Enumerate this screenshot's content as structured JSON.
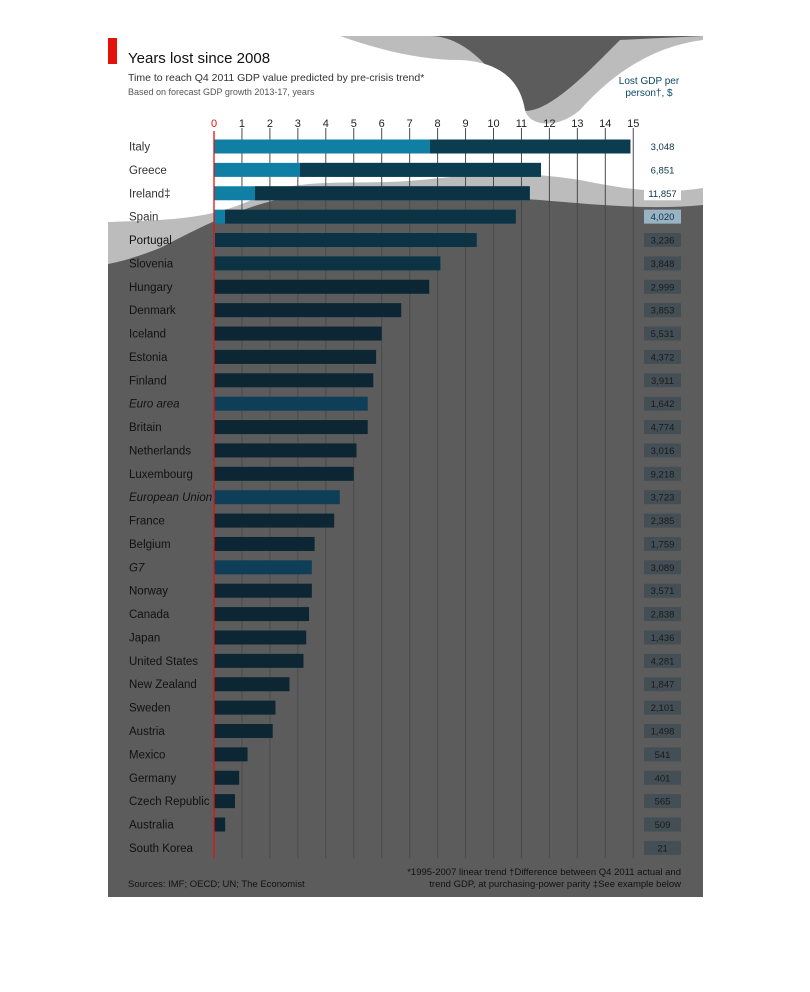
{
  "header": {
    "title": "Years lost since 2008",
    "subtitle": "Time to reach Q4 2011 GDP value predicted by pre-crisis trend*",
    "subsubtitle": "Based on forecast GDP growth 2013-17, years",
    "value_column_title_line1": "Lost GDP per",
    "value_column_title_line2": "person†, $"
  },
  "footer": {
    "sources": "Sources: IMF; OECD; UN; The Economist",
    "note_line1": "*1995-2007 linear trend   †Difference between Q4 2011 actual and",
    "note_line2": "trend GDP, at purchasing-power parity   ‡See example below"
  },
  "colors": {
    "background_dark": "#5c5c5c",
    "band_light": "#bcbcbc",
    "bar_dark": "#0c2633",
    "bar_aggregate": "#0f3f58",
    "bar_light": "#0f7fa3",
    "accent_red": "#e3120b",
    "label_box_light": "#ffffff",
    "label_box_dark": "#434f55"
  },
  "chart_data": {
    "type": "bar",
    "orientation": "horizontal",
    "xlim": [
      0,
      15
    ],
    "x_ticks": [
      "0",
      "1",
      "2",
      "3",
      "4",
      "5",
      "6",
      "7",
      "8",
      "9",
      "10",
      "11",
      "12",
      "13",
      "14",
      "15"
    ],
    "grid": true,
    "categories": [
      "Italy",
      "Greece",
      "Ireland‡",
      "Spain",
      "Portugal",
      "Slovenia",
      "Hungary",
      "Denmark",
      "Iceland",
      "Estonia",
      "Finland",
      "Euro area",
      "Britain",
      "Netherlands",
      "Luxembourg",
      "European Union",
      "France",
      "Belgium",
      "G7",
      "Norway",
      "Canada",
      "Japan",
      "United States",
      "New Zealand",
      "Sweden",
      "Austria",
      "Mexico",
      "Germany",
      "Czech Republic",
      "Australia",
      "South Korea"
    ],
    "aggregates": [
      "Euro area",
      "European Union",
      "G7"
    ],
    "series": [
      {
        "values": [
          14.9,
          11.7,
          11.3,
          10.8,
          9.4,
          8.1,
          7.7,
          6.7,
          6.0,
          5.8,
          5.7,
          5.5,
          5.5,
          5.1,
          5.0,
          4.5,
          4.3,
          3.6,
          3.5,
          3.5,
          3.4,
          3.3,
          3.2,
          2.7,
          2.2,
          2.1,
          1.2,
          0.9,
          0.75,
          0.4,
          0.0
        ]
      }
    ],
    "lost_gdp_per_person_labels": [
      "3,048",
      "6,851",
      "11,857",
      "4,020",
      "3,236",
      "3,848",
      "2,999",
      "3,853",
      "5,531",
      "4,372",
      "3,911",
      "1,642",
      "4,774",
      "3,016",
      "9,218",
      "3,723",
      "2,385",
      "1,759",
      "3,089",
      "3,571",
      "2,838",
      "1,436",
      "4,281",
      "1,847",
      "2,101",
      "1,498",
      "541",
      "401",
      "565",
      "509",
      "21"
    ]
  }
}
